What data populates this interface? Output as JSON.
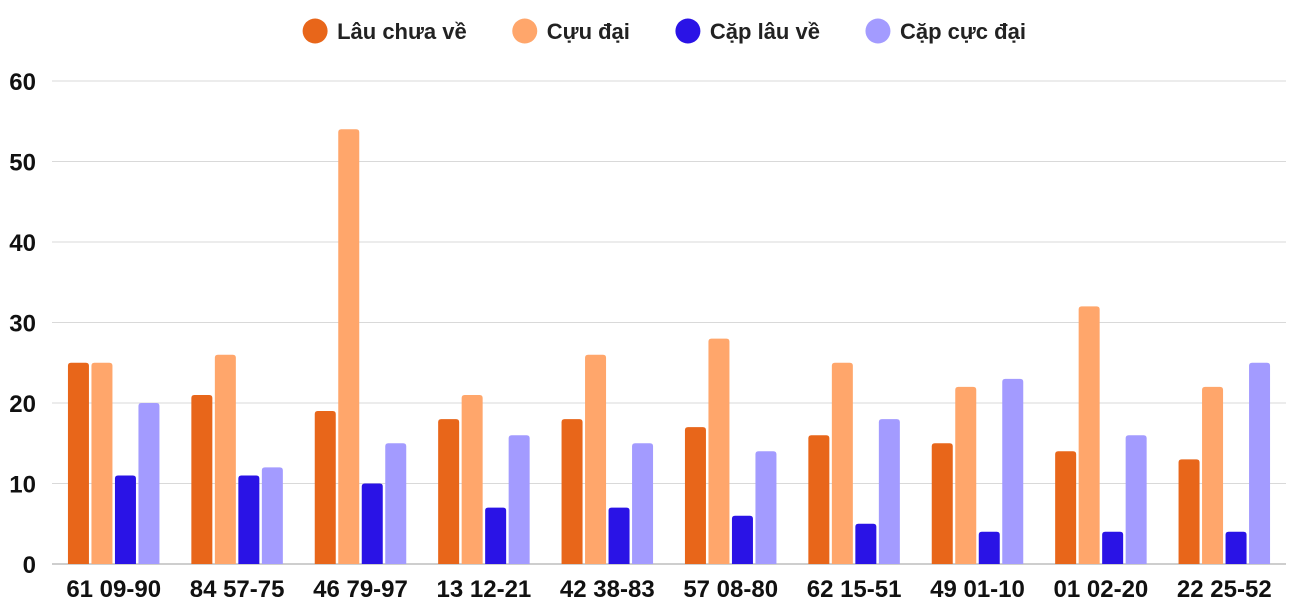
{
  "chart_data": {
    "type": "bar",
    "categories": [
      "61 09-90",
      "84 57-75",
      "46 79-97",
      "13 12-21",
      "42 38-83",
      "57 08-80",
      "62 15-51",
      "49 01-10",
      "01 02-20",
      "22 25-52"
    ],
    "series": [
      {
        "name": "Lâu chưa về",
        "color": "#E8661A",
        "values": [
          25,
          21,
          19,
          18,
          18,
          17,
          16,
          15,
          14,
          13
        ]
      },
      {
        "name": "Cựu đại",
        "color": "#FFA66B",
        "values": [
          25,
          26,
          54,
          21,
          26,
          28,
          25,
          22,
          32,
          22
        ]
      },
      {
        "name": "Cặp lâu về",
        "color": "#2A13E6",
        "values": [
          11,
          11,
          10,
          7,
          7,
          6,
          5,
          4,
          4,
          4
        ]
      },
      {
        "name": "Cặp cực đại",
        "color": "#A39BFF",
        "values": [
          20,
          12,
          15,
          16,
          15,
          14,
          18,
          23,
          16,
          25
        ]
      }
    ],
    "ylim": [
      0,
      60
    ],
    "yticks": [
      0,
      10,
      20,
      30,
      40,
      50,
      60
    ],
    "grid": true,
    "legend_position": "top"
  }
}
